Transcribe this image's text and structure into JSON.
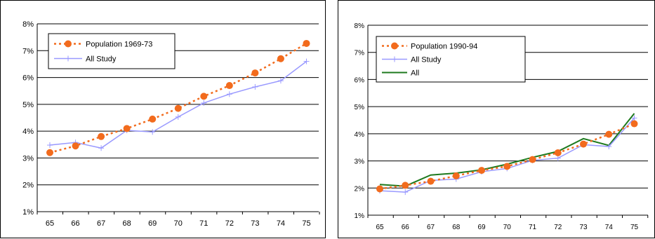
{
  "chart_data": [
    {
      "type": "line",
      "categories": [
        "65",
        "66",
        "67",
        "68",
        "69",
        "70",
        "71",
        "72",
        "73",
        "74",
        "75"
      ],
      "y_tick_labels": [
        "1%",
        "2%",
        "3%",
        "4%",
        "5%",
        "6%",
        "7%",
        "8%"
      ],
      "ylim": [
        0.01,
        0.08
      ],
      "grid": true,
      "legend_position": "top-left",
      "series": [
        {
          "name": "Population 1969-73",
          "color": "#f26b1d",
          "style": "dashed-dots",
          "values": [
            0.032,
            0.0345,
            0.038,
            0.041,
            0.0445,
            0.0485,
            0.053,
            0.057,
            0.0617,
            0.067,
            0.0727
          ]
        },
        {
          "name": "All Study",
          "color": "#9999ff",
          "style": "line-plus",
          "values": [
            0.0348,
            0.0358,
            0.0337,
            0.0403,
            0.0397,
            0.0453,
            0.0505,
            0.0538,
            0.0565,
            0.0588,
            0.066
          ]
        }
      ]
    },
    {
      "type": "line",
      "categories": [
        "65",
        "66",
        "67",
        "68",
        "69",
        "70",
        "71",
        "72",
        "73",
        "74",
        "75"
      ],
      "y_tick_labels": [
        "1%",
        "2%",
        "3%",
        "4%",
        "5%",
        "6%",
        "7%",
        "8%"
      ],
      "ylim": [
        0.01,
        0.08
      ],
      "grid": true,
      "legend_position": "top-left",
      "series": [
        {
          "name": "Population 1990-94",
          "color": "#f26b1d",
          "style": "dashed-dots",
          "values": [
            0.0197,
            0.021,
            0.0225,
            0.0245,
            0.0265,
            0.028,
            0.0305,
            0.033,
            0.0362,
            0.0398,
            0.0437
          ]
        },
        {
          "name": "All Study",
          "color": "#9999ff",
          "style": "line-plus",
          "values": [
            0.019,
            0.0185,
            0.0228,
            0.0233,
            0.026,
            0.0272,
            0.0302,
            0.031,
            0.036,
            0.0353,
            0.0458
          ]
        },
        {
          "name": "All",
          "color": "#1e7a1e",
          "style": "line",
          "values": [
            0.0213,
            0.0207,
            0.0248,
            0.0255,
            0.0267,
            0.0288,
            0.0313,
            0.0335,
            0.0382,
            0.0357,
            0.0475
          ]
        }
      ]
    }
  ]
}
